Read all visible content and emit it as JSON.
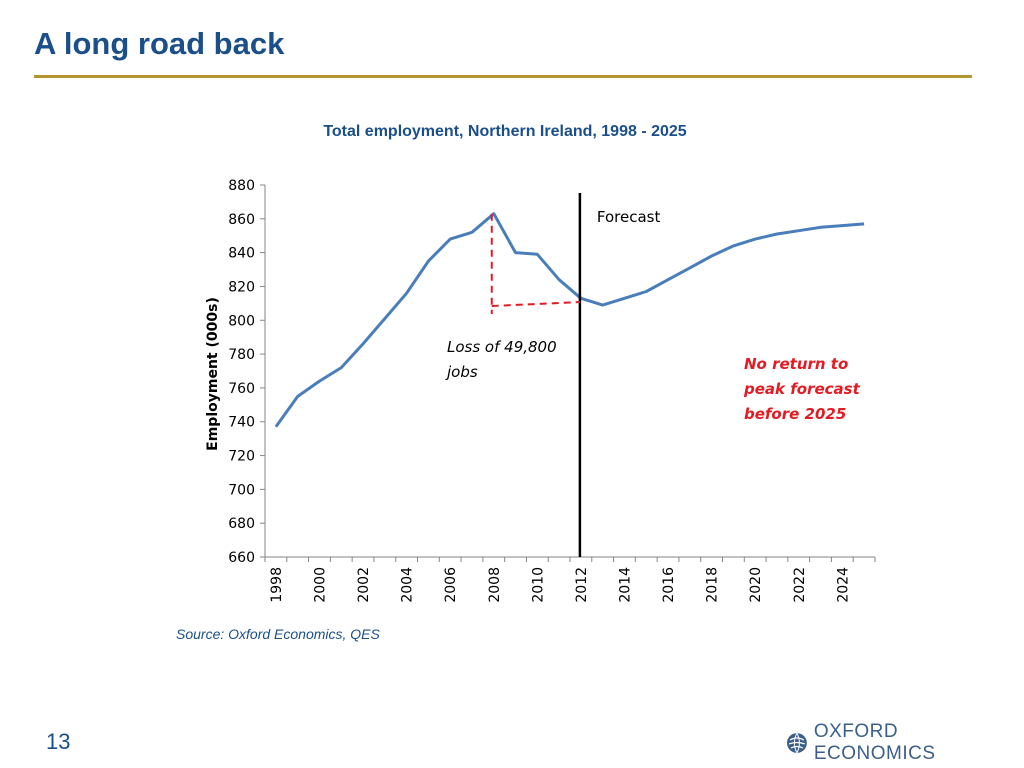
{
  "slide": {
    "title": "A long road back",
    "source": "Source: Oxford Economics, QES",
    "page_number": "13",
    "logo_text": "OXFORD ECONOMICS"
  },
  "colors": {
    "title": "#1b4f8a",
    "rule": "#b4962e",
    "series": "#4a7ebb",
    "annotation_red": "#e31b23"
  },
  "chart_data": {
    "type": "line",
    "title": "Total employment, Northern Ireland, 1998 - 2025",
    "ylabel": "Employment (000s)",
    "xlabel": "",
    "ylim": [
      660,
      880
    ],
    "yticks": [
      660,
      680,
      700,
      720,
      740,
      760,
      780,
      800,
      820,
      840,
      860,
      880
    ],
    "xticks": [
      "1998",
      "2000",
      "2002",
      "2004",
      "2006",
      "2008",
      "2010",
      "2012",
      "2014",
      "2016",
      "2018",
      "2020",
      "2022",
      "2024"
    ],
    "grid": false,
    "x": [
      1998,
      1999,
      2000,
      2001,
      2002,
      2003,
      2004,
      2005,
      2006,
      2007,
      2008,
      2009,
      2010,
      2011,
      2012,
      2013,
      2014,
      2015,
      2016,
      2017,
      2018,
      2019,
      2020,
      2021,
      2022,
      2023,
      2024,
      2025
    ],
    "series": [
      {
        "values": [
          737,
          755,
          764,
          772,
          786,
          801,
          816,
          835,
          848,
          852,
          863,
          840,
          839,
          824,
          813,
          809,
          813,
          817,
          824,
          831,
          838,
          844,
          848,
          851,
          853,
          855,
          856,
          857
        ]
      }
    ],
    "forecast_start": 2012,
    "annotations": {
      "forecast_label": "Forecast",
      "loss_label_line1": "Loss of 49,800",
      "loss_label_line2": "jobs",
      "no_return_line1": "No return to",
      "no_return_line2": "peak forecast",
      "no_return_line3": "before 2025"
    }
  }
}
